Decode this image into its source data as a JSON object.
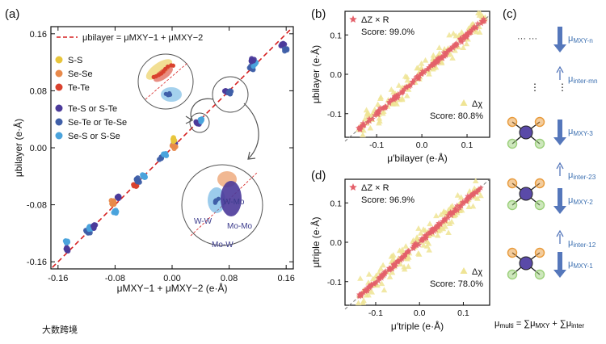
{
  "colors": {
    "S-S": "#e8c53a",
    "Se-Se": "#e8894a",
    "Te-Te": "#d9412e",
    "Te-S or S-Te": "#4b3a9a",
    "Se-Te or Te-Se": "#3f5fa8",
    "Se-S or S-Se": "#4aa3dc",
    "dashed": "#d62020",
    "star": "#e4606a",
    "triangle": "#efe494",
    "arrow": "#5577bb",
    "wm": "#c8c8c8"
  },
  "chart_data": [
    {
      "panel": "(a)",
      "type": "scatter",
      "xlabel": "μMXY−1 + μMXY−2 (e·Å)",
      "ylabel": "μbilayer (e·Å)",
      "xlim": [
        -0.17,
        0.17
      ],
      "ylim": [
        -0.17,
        0.17
      ],
      "xticks": [
        "-0.16",
        "-0.08",
        "0.00",
        "0.08",
        "0.16"
      ],
      "yticks": [
        "0.16",
        "0.08",
        "0.00",
        "-0.08",
        "-0.16"
      ],
      "line_label": "μbilayer = μMXY−1 + μMXY−2",
      "legend_group1": [
        "S-S",
        "Se-Se",
        "Te-Te"
      ],
      "legend_group2": [
        "Te-S or S-Te",
        "Se-Te or Te-Se",
        "Se-S or S-Se"
      ],
      "clusters": [
        {
          "x": -0.148,
          "y": -0.142,
          "s": "Te-S or S-Te"
        },
        {
          "x": -0.148,
          "y": -0.132,
          "s": "Se-S or S-Se"
        },
        {
          "x": -0.118,
          "y": -0.118,
          "s": "Se-Te or Te-Se"
        },
        {
          "x": -0.116,
          "y": -0.112,
          "s": "Se-S or S-Se"
        },
        {
          "x": -0.11,
          "y": -0.11,
          "s": "Te-S or S-Te"
        },
        {
          "x": -0.082,
          "y": -0.078,
          "s": "Se-Se"
        },
        {
          "x": -0.08,
          "y": -0.088,
          "s": "Se-S or S-Se"
        },
        {
          "x": -0.076,
          "y": -0.07,
          "s": "Te-S or S-Te"
        },
        {
          "x": -0.052,
          "y": -0.052,
          "s": "Te-Te"
        },
        {
          "x": -0.048,
          "y": -0.046,
          "s": "Se-Te or Te-Se"
        },
        {
          "x": -0.04,
          "y": -0.04,
          "s": "Se-S or S-Se"
        },
        {
          "x": -0.016,
          "y": -0.014,
          "s": "Se-Te or Te-Se"
        },
        {
          "x": -0.01,
          "y": -0.01,
          "s": "Se-S or S-Se"
        },
        {
          "x": 0.002,
          "y": 0.006,
          "s": "Te-S or S-Te"
        },
        {
          "x": 0.003,
          "y": 0.002,
          "s": "Se-Se"
        },
        {
          "x": 0.002,
          "y": 0.012,
          "s": "S-S"
        },
        {
          "x": 0.036,
          "y": 0.034,
          "s": "Te-S or S-Te"
        },
        {
          "x": 0.04,
          "y": 0.04,
          "s": "Se-S or S-Se"
        },
        {
          "x": 0.076,
          "y": 0.078,
          "s": "Te-S or S-Te"
        },
        {
          "x": 0.082,
          "y": 0.078,
          "s": "Se-Te or Te-Se"
        },
        {
          "x": 0.112,
          "y": 0.112,
          "s": "Se-Te or Te-Se"
        },
        {
          "x": 0.116,
          "y": 0.118,
          "s": "Se-S or S-Se"
        },
        {
          "x": 0.112,
          "y": 0.122,
          "s": "Te-S or S-Te"
        },
        {
          "x": 0.155,
          "y": 0.146,
          "s": "Te-S or S-Te"
        },
        {
          "x": 0.16,
          "y": 0.138,
          "s": "Se-Te or Te-Se"
        }
      ],
      "inset_labels": [
        "W-W",
        "W-Mo",
        "Mo-Mo",
        "Mo-W"
      ]
    },
    {
      "panel": "(b)",
      "type": "scatter",
      "xlabel": "μ′bilayer (e·Å)",
      "ylabel": "μbilayer (e·Å)",
      "xlim": [
        -0.17,
        0.15
      ],
      "ylim": [
        -0.16,
        0.16
      ],
      "xticks": [
        "-0.1",
        "0.0",
        "0.1"
      ],
      "yticks": [
        "0.1",
        "0.0",
        "-0.1"
      ],
      "series": [
        {
          "name": "ΔZ × R",
          "marker": "star",
          "score": "Score: 99.0%"
        },
        {
          "name": "Δχ",
          "marker": "triangle",
          "score": "Score: 80.8%"
        }
      ]
    },
    {
      "panel": "(d)",
      "type": "scatter",
      "xlabel": "μ′triple (e·Å)",
      "ylabel": "μtriple (e·Å)",
      "xlim": [
        -0.17,
        0.16
      ],
      "ylim": [
        -0.16,
        0.16
      ],
      "xticks": [
        "-0.1",
        "0.0",
        "0.1"
      ],
      "yticks": [
        "0.1",
        "0.0",
        "-0.1"
      ],
      "series": [
        {
          "name": "ΔZ × R",
          "marker": "star",
          "score": "Score: 96.9%"
        },
        {
          "name": "Δχ",
          "marker": "triangle",
          "score": "Score: 78.0%"
        }
      ]
    }
  ],
  "panel_c": {
    "label": "(c)",
    "dots_h": "··· ···",
    "dots_v": "⋮",
    "arrows": [
      "μMXY-n",
      "μinter-mn",
      "μMXY-3",
      "μinter-23",
      "μMXY-2",
      "μinter-12",
      "μMXY-1"
    ],
    "formula": "μmulti = ∑μMXY + ∑μinter"
  },
  "watermark": "大数跨境"
}
